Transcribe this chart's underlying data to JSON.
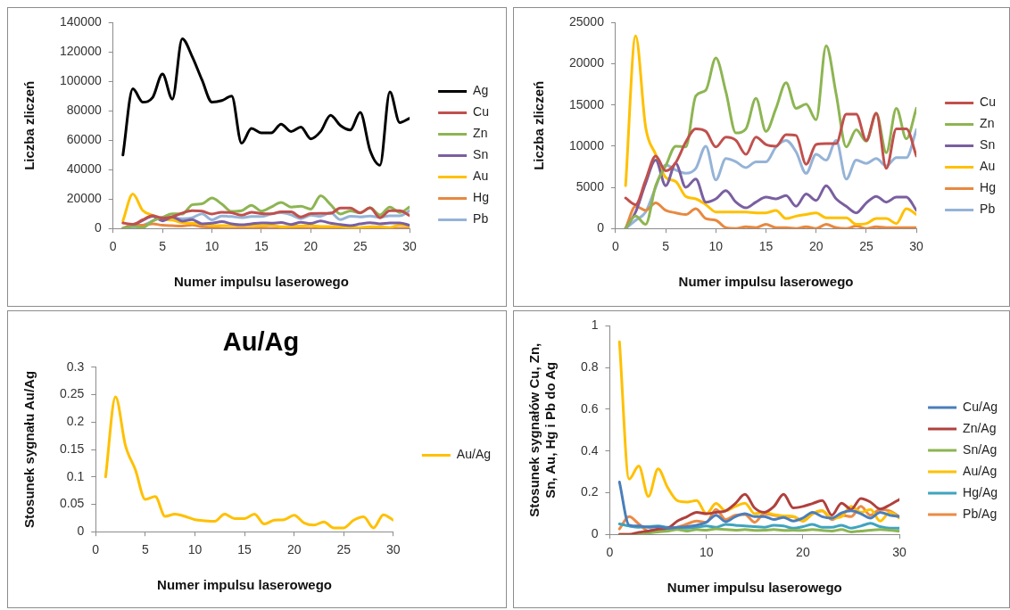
{
  "chart_data": [
    {
      "type": "line",
      "xlabel": "Numer impulsu laserowego",
      "ylabel": "Liczba zliczeń",
      "x": [
        1,
        2,
        3,
        4,
        5,
        6,
        7,
        8,
        9,
        10,
        11,
        12,
        13,
        14,
        15,
        16,
        17,
        18,
        19,
        20,
        21,
        22,
        23,
        24,
        25,
        26,
        27,
        28,
        29,
        30
      ],
      "xlim": [
        0,
        30
      ],
      "xticks": [
        0,
        5,
        10,
        15,
        20,
        25,
        30
      ],
      "ylim": [
        0,
        140000
      ],
      "yticks": [
        0,
        20000,
        40000,
        60000,
        80000,
        100000,
        120000,
        140000
      ],
      "legend": "right",
      "series": [
        {
          "name": "Ag",
          "color": "#000000",
          "values": [
            50000,
            95000,
            86000,
            89000,
            105000,
            88000,
            129000,
            117000,
            101000,
            86000,
            87000,
            90000,
            58000,
            68000,
            65000,
            65000,
            71000,
            66000,
            69000,
            61000,
            66000,
            77000,
            70000,
            67000,
            79000,
            53000,
            43000,
            93000,
            72000,
            75000
          ]
        },
        {
          "name": "Cu",
          "color": "#c0504d",
          "values": [
            3700,
            2900,
            5900,
            8800,
            7000,
            8000,
            10500,
            12100,
            11800,
            9900,
            11100,
            10700,
            9000,
            11100,
            10200,
            10000,
            11400,
            11300,
            7800,
            10200,
            10300,
            10300,
            13900,
            13900,
            10700,
            14000,
            7300,
            12100,
            12100,
            8800
          ]
        },
        {
          "name": "Zn",
          "color": "#8db552",
          "values": [
            0,
            1500,
            500,
            5200,
            7600,
            10000,
            9900,
            16100,
            16800,
            20700,
            16600,
            11600,
            12100,
            15800,
            11800,
            14600,
            17700,
            14600,
            15100,
            13200,
            22200,
            16300,
            9900,
            12000,
            10600,
            14000,
            9200,
            14600,
            10900,
            14600
          ]
        },
        {
          "name": "Sn",
          "color": "#7a5fa0",
          "values": [
            0,
            2000,
            5500,
            8300,
            5200,
            7900,
            5000,
            6000,
            3200,
            3600,
            4600,
            3200,
            2500,
            3200,
            3800,
            3600,
            4000,
            2700,
            4200,
            3400,
            5200,
            3600,
            2700,
            1900,
            3100,
            3900,
            3200,
            3800,
            3800,
            2200
          ]
        },
        {
          "name": "Au",
          "color": "#ffc000",
          "values": [
            5200,
            23400,
            12300,
            9000,
            6200,
            5700,
            3900,
            3600,
            2900,
            2000,
            2000,
            2000,
            2000,
            1900,
            1900,
            2200,
            1200,
            1500,
            1700,
            1900,
            1300,
            1300,
            1300,
            500,
            600,
            1200,
            1200,
            600,
            2400,
            1700
          ]
        },
        {
          "name": "Hg",
          "color": "#e8883f",
          "values": [
            0,
            2700,
            2200,
            3100,
            2200,
            1900,
            1700,
            2400,
            1200,
            1000,
            100,
            0,
            200,
            100,
            500,
            100,
            100,
            0,
            200,
            0,
            500,
            100,
            0,
            300,
            0,
            200,
            100,
            100,
            100,
            100
          ]
        },
        {
          "name": "Pb",
          "color": "#95b3d7",
          "values": [
            0,
            1000,
            2000,
            5000,
            7700,
            7100,
            6700,
            7300,
            10000,
            5900,
            8500,
            8100,
            7400,
            8100,
            8100,
            9900,
            10700,
            9300,
            6700,
            9000,
            8300,
            10700,
            6000,
            8300,
            7900,
            8500,
            7600,
            8600,
            8600,
            12000
          ]
        }
      ]
    },
    {
      "type": "line",
      "xlabel": "Numer impulsu laserowego",
      "ylabel": "Liczba zliczeń",
      "x": [
        1,
        2,
        3,
        4,
        5,
        6,
        7,
        8,
        9,
        10,
        11,
        12,
        13,
        14,
        15,
        16,
        17,
        18,
        19,
        20,
        21,
        22,
        23,
        24,
        25,
        26,
        27,
        28,
        29,
        30
      ],
      "xlim": [
        0,
        30
      ],
      "xticks": [
        0,
        5,
        10,
        15,
        20,
        25,
        30
      ],
      "ylim": [
        0,
        25000
      ],
      "yticks": [
        0,
        5000,
        10000,
        15000,
        20000,
        25000
      ],
      "legend": "right",
      "series": [
        {
          "name": "Cu",
          "color": "#c0504d",
          "values": [
            3700,
            2900,
            5900,
            8800,
            7000,
            8000,
            10500,
            12100,
            11800,
            9900,
            11100,
            10700,
            9000,
            11100,
            10200,
            10000,
            11400,
            11300,
            7800,
            10200,
            10300,
            10300,
            13900,
            13900,
            10700,
            14000,
            7300,
            12100,
            12100,
            8800
          ]
        },
        {
          "name": "Zn",
          "color": "#8db552",
          "values": [
            0,
            1500,
            500,
            5200,
            7600,
            10000,
            9900,
            16100,
            16800,
            20700,
            16600,
            11600,
            12100,
            15800,
            11800,
            14600,
            17700,
            14600,
            15100,
            13200,
            22200,
            16300,
            9900,
            12000,
            10600,
            14000,
            9200,
            14600,
            10900,
            14600
          ]
        },
        {
          "name": "Sn",
          "color": "#7a5fa0",
          "values": [
            0,
            2000,
            5500,
            8300,
            5200,
            7900,
            5000,
            6000,
            3200,
            3600,
            4600,
            3200,
            2500,
            3200,
            3800,
            3600,
            4000,
            2700,
            4200,
            3400,
            5200,
            3600,
            2700,
            1900,
            3100,
            3900,
            3200,
            3800,
            3800,
            2200
          ]
        },
        {
          "name": "Au",
          "color": "#ffc000",
          "values": [
            5200,
            23400,
            12300,
            9000,
            6200,
            5700,
            3900,
            3600,
            2900,
            2000,
            2000,
            2000,
            2000,
            1900,
            1900,
            2200,
            1200,
            1500,
            1700,
            1900,
            1300,
            1300,
            1300,
            500,
            600,
            1200,
            1200,
            600,
            2400,
            1700
          ]
        },
        {
          "name": "Hg",
          "color": "#e8883f",
          "values": [
            0,
            2700,
            2200,
            3100,
            2200,
            1900,
            1700,
            2400,
            1200,
            1000,
            100,
            0,
            200,
            100,
            500,
            100,
            100,
            0,
            200,
            0,
            500,
            100,
            0,
            300,
            0,
            200,
            100,
            100,
            100,
            100
          ]
        },
        {
          "name": "Pb",
          "color": "#95b3d7",
          "values": [
            0,
            1000,
            2000,
            5000,
            7700,
            7100,
            6700,
            7300,
            10000,
            5900,
            8500,
            8100,
            7400,
            8100,
            8100,
            9900,
            10700,
            9300,
            6700,
            9000,
            8300,
            10700,
            6000,
            8300,
            7900,
            8500,
            7600,
            8600,
            8600,
            12000
          ]
        }
      ]
    },
    {
      "type": "line",
      "title": "Au/Ag",
      "xlabel": "Numer impulsu laserowego",
      "ylabel": "Stosunek sygnału Au/Ag",
      "x": [
        1,
        2,
        3,
        4,
        5,
        6,
        7,
        8,
        9,
        10,
        11,
        12,
        13,
        14,
        15,
        16,
        17,
        18,
        19,
        20,
        21,
        22,
        23,
        24,
        25,
        26,
        27,
        28,
        29,
        30
      ],
      "xlim": [
        0,
        30
      ],
      "xticks": [
        0,
        5,
        10,
        15,
        20,
        25,
        30
      ],
      "ylim": [
        0,
        0.3
      ],
      "yticks": [
        0,
        0.05,
        0.1,
        0.15,
        0.2,
        0.25,
        0.3
      ],
      "legend": "right",
      "series": [
        {
          "name": "Au/Ag",
          "color": "#ffc000",
          "values": [
            0.1,
            0.246,
            0.157,
            0.113,
            0.059,
            0.064,
            0.028,
            0.032,
            0.028,
            0.022,
            0.02,
            0.019,
            0.032,
            0.024,
            0.024,
            0.032,
            0.014,
            0.021,
            0.022,
            0.03,
            0.016,
            0.012,
            0.018,
            0.007,
            0.007,
            0.021,
            0.027,
            0.007,
            0.031,
            0.021
          ]
        }
      ]
    },
    {
      "type": "line",
      "xlabel": "Numer impulsu laserowego",
      "ylabel": "Stosunek sygnałów Cu, Zn, Sn, Au, Hg i Pb do Ag",
      "x": [
        1,
        2,
        3,
        4,
        5,
        6,
        7,
        8,
        9,
        10,
        11,
        12,
        13,
        14,
        15,
        16,
        17,
        18,
        19,
        20,
        21,
        22,
        23,
        24,
        25,
        26,
        27,
        28,
        29,
        30
      ],
      "xlim": [
        0,
        30
      ],
      "xticks": [
        0,
        10,
        20,
        30
      ],
      "ylim": [
        0,
        1
      ],
      "yticks": [
        0,
        0.2,
        0.4,
        0.6,
        0.8,
        1
      ],
      "legend": "right",
      "series": [
        {
          "name": "Cu/Ag",
          "color": "#4a7ebb",
          "values": [
            0.251,
            0.044,
            0.04,
            0.034,
            0.037,
            0.03,
            0.034,
            0.037,
            0.044,
            0.058,
            0.092,
            0.061,
            0.085,
            0.099,
            0.085,
            0.085,
            0.071,
            0.081,
            0.064,
            0.078,
            0.106,
            0.085,
            0.078,
            0.103,
            0.113,
            0.099,
            0.078,
            0.106,
            0.092,
            0.085
          ]
        },
        {
          "name": "Zn/Ag",
          "color": "#b0403d",
          "values": [
            0,
            0,
            0.01,
            0.016,
            0.025,
            0.03,
            0.064,
            0.085,
            0.106,
            0.099,
            0.106,
            0.113,
            0.148,
            0.192,
            0.127,
            0.106,
            0.134,
            0.192,
            0.127,
            0.134,
            0.148,
            0.162,
            0.092,
            0.15,
            0.12,
            0.172,
            0.155,
            0.122,
            0.141,
            0.168
          ]
        },
        {
          "name": "Sn/Ag",
          "color": "#8db552",
          "values": [
            0,
            0,
            0,
            0.006,
            0.012,
            0.016,
            0.023,
            0.016,
            0.023,
            0.02,
            0.026,
            0.023,
            0.02,
            0.023,
            0.019,
            0.02,
            0.023,
            0.019,
            0.02,
            0.019,
            0.023,
            0.019,
            0.016,
            0.023,
            0.012,
            0.016,
            0.02,
            0.023,
            0.02,
            0.016
          ]
        },
        {
          "name": "Au/Ag",
          "color": "#ffc000",
          "values": [
            0.924,
            0.265,
            0.328,
            0.182,
            0.314,
            0.224,
            0.162,
            0.155,
            0.162,
            0.099,
            0.148,
            0.113,
            0.134,
            0.15,
            0.099,
            0.106,
            0.095,
            0.089,
            0.085,
            0.064,
            0.099,
            0.113,
            0.078,
            0.085,
            0.134,
            0.106,
            0.12,
            0.064,
            0.106,
            0.078
          ]
        },
        {
          "name": "Hg/Ag",
          "color": "#3fa4bf",
          "values": [
            0.05,
            0.04,
            0.034,
            0.037,
            0.04,
            0.034,
            0.03,
            0.03,
            0.034,
            0.04,
            0.034,
            0.048,
            0.044,
            0.04,
            0.037,
            0.034,
            0.044,
            0.04,
            0.03,
            0.037,
            0.048,
            0.034,
            0.034,
            0.044,
            0.03,
            0.04,
            0.053,
            0.037,
            0.03,
            0.03
          ]
        },
        {
          "name": "Pb/Ag",
          "color": "#ec8a45",
          "values": [
            0.026,
            0.085,
            0.05,
            0.016,
            0.02,
            0.026,
            0.034,
            0.05,
            0.064,
            0.058,
            0.12,
            0.071,
            0.092,
            0.095,
            0.058,
            0.099,
            0.092,
            0.085,
            0.085,
            0.064,
            0.099,
            0.113,
            0.071,
            0.092,
            0.085,
            0.134,
            0.092,
            0.12,
            0.113,
            0.085
          ]
        }
      ]
    }
  ]
}
